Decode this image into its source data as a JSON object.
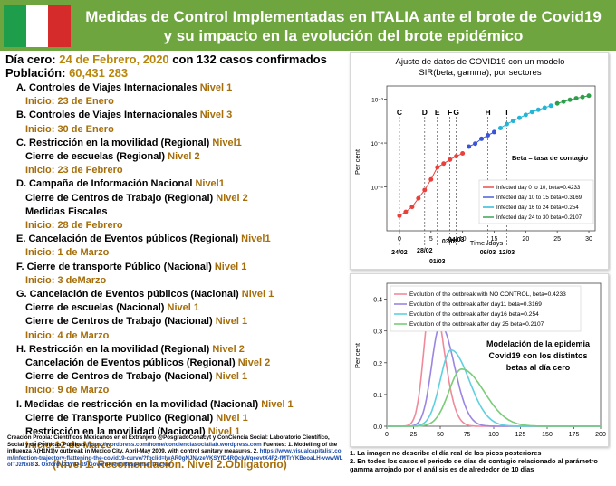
{
  "header": {
    "title_line1": "Medidas de Control Implementadas en ITALIA ante el brote de Covid19",
    "title_line2": "y su impacto en la evolución del brote epidémico",
    "flag_colors": [
      "#1e9e4a",
      "#ffffff",
      "#d62b2b"
    ],
    "background": "#6fa53e"
  },
  "intro": {
    "dia_label": "Día cero:",
    "dia_value": "24 de Febrero, 2020",
    "dia_tail": "con 132 casos confirmados",
    "poblacion_label": "Población:",
    "poblacion_value": "60,431 283"
  },
  "measures": [
    {
      "head": "A. Controles de Viajes Internacionales",
      "level": "Nivel 1",
      "start": "Inicio: 23 de Enero"
    },
    {
      "head": "B. Controles de Viajes Internacionales",
      "level": "Nivel 3",
      "start": "Inicio: 30 de Enero"
    },
    {
      "head": "C. Restricción en la movilidad (Regional)",
      "level": "Nivel1",
      "sub": [
        {
          "text": "Cierre de escuelas (Regional)",
          "level": "Nivel 2"
        }
      ],
      "start": "Inicio: 23 de Febrero"
    },
    {
      "head": "D.  Campaña de Información Nacional",
      "level": "Nivel1",
      "sub": [
        {
          "text": "Cierre de Centros de Trabajo (Regional)",
          "level": "Nivel 2"
        },
        {
          "text": "Medidas Fiscales",
          "level": ""
        }
      ],
      "start": "Inicio: 28 de Febrero"
    },
    {
      "head": "E.  Cancelación de Eventos públicos (Regional)",
      "level": "Nivel1",
      "start": "Inicio: 1 de Marzo"
    },
    {
      "head": "F. Cierre de transporte Público (Nacional)",
      "level": "Nivel 1",
      "start": "Inicio: 3  deMarzo"
    },
    {
      "head": "G. Cancelación de Eventos públicos (Nacional)",
      "level": "Nivel 1",
      "sub": [
        {
          "text": "Cierre de escuelas (Nacional)",
          "level": "Nivel 1"
        },
        {
          "text": "Cierre de Centros de Trabajo (Nacional)",
          "level": "Nivel 1"
        }
      ],
      "start": "Inicio: 4 de Marzo"
    },
    {
      "head": "H.  Restricción en la movilidad (Regional)",
      "level": "Nivel 2",
      "sub": [
        {
          "text": "Cancelación de Eventos públicos (Regional)",
          "level": "Nivel 2"
        },
        {
          "text": "Cierre de Centros de Trabajo (Nacional)",
          "level": "Nivel 1"
        }
      ],
      "start": "Inicio: 9 de Marzo"
    },
    {
      "head": "I. Medidas de restricción en la movilidad (Nacional)",
      "level": "Nivel 1",
      "sub": [
        {
          "text": "Cierre de Transporte Publico (Regional)",
          "level": "Nivel 1"
        },
        {
          "text": "Restricción en la movilidad (Nacional)",
          "level": "Nivel 1"
        }
      ],
      "start": "Inicio:12 de Marzo"
    }
  ],
  "levels_note": "(Nivel 1. Recomendación.      Nivel 2.Obligatorio)",
  "credits": {
    "text1": "Creación Propia: Científicos Mexicanos en el Extranjero @PosgradoConacyt y ConCiencia Social: Laboratorio Científico, Social y de Políticas Públicas",
    "link1": "https://wordpress.com/home/concienciasociallab.wordpress.com",
    "text2": "Fuentes: 1. Modelling of the influenza A(H1N1)v outbreak in Mexico City,  April-May 2009, with control sanitary measures, 2.",
    "link2": "https://www.visualcapitalist.com/infection-trajectory-flattening-the-covid19-curve/?fbclid=IwAR0gNJNvzeVKSYfD4RQckWqeevtX4F2-fMTrYKBeoaLH-vwwWLoITJzNxi8",
    "text3": "3.",
    "link3": "Oxford COVID-19 Government Response Tracker"
  },
  "chart1": {
    "caption_line1": "Ajuste de datos de COVID19 con un modelo",
    "caption_line2": "SIR(beta, gamma), por sectores",
    "beta_note": "Beta = tasa de contagio",
    "ylabel": "Per cent",
    "xlabel": "Time /days",
    "date_labels": [
      "24/02",
      "28/02",
      "01/03",
      "03/03",
      "04/03",
      "09/03",
      "12/03"
    ],
    "letters": [
      "C",
      "D",
      "E",
      "F",
      "G",
      "H",
      "I"
    ]
  },
  "chart2": {
    "ylabel": "Per cent",
    "annotation_line1": "Modelación de la epidemia",
    "annotation_line2": "Covid19 con los distintos",
    "annotation_line3": "betas al día cero"
  },
  "footnotes": {
    "line1": "1. La imagen no describe el día real de los picos posteriores",
    "line2": "2. En todos los casos el periodo de días de contagio relacionado  al parámetro gamma arrojado por el análisis  es de alrededor de 10 días"
  },
  "chart_data": [
    {
      "type": "scatter",
      "yscale": "log",
      "xlim": [
        -2,
        31
      ],
      "ylim": [
        1e-06,
        0.002
      ],
      "xticks": [
        0,
        5,
        10,
        15,
        20,
        25,
        30
      ],
      "yticks": [
        {
          "v": 0.001,
          "label": "10⁻³"
        },
        {
          "v": 0.0001,
          "label": "10⁻⁴"
        },
        {
          "v": 1e-05,
          "label": "10⁻⁵"
        }
      ],
      "series": [
        {
          "name": "Infected day 0 to 10, beta=0.4233",
          "color": "#e8413c",
          "x": [
            0,
            1,
            2,
            3,
            4,
            5,
            6,
            7,
            8,
            9,
            10
          ],
          "y": [
            2.2e-06,
            2.7e-06,
            3.5e-06,
            5.5e-06,
            8.5e-06,
            1.48e-05,
            2.8e-05,
            3.4e-05,
            4.2e-05,
            5e-05,
            5.8e-05
          ]
        },
        {
          "name": "Infected day 10 to 15 beta=0.3169",
          "color": "#3b54d6",
          "x": [
            11,
            12,
            13,
            14,
            15
          ],
          "y": [
            8.3e-05,
            9.7e-05,
            0.000125,
            0.00015,
            0.000178
          ]
        },
        {
          "name": "Infected day 16 to 24 beta=0.254",
          "color": "#22b5d6",
          "x": [
            16,
            17,
            18,
            19,
            20,
            21,
            22,
            23,
            24
          ],
          "y": [
            0.00022,
            0.00027,
            0.00032,
            0.000375,
            0.00044,
            0.00051,
            0.000575,
            0.00064,
            0.00071
          ]
        },
        {
          "name": "Infected day 24 to 30 beta=0.2107",
          "color": "#2e9e4a",
          "x": [
            25,
            26,
            27,
            28,
            29,
            30
          ],
          "y": [
            0.0008,
            0.00088,
            0.00097,
            0.00105,
            0.00112,
            0.0012
          ]
        }
      ],
      "markers": [
        {
          "letter": "C",
          "x": 0
        },
        {
          "letter": "D",
          "x": 4
        },
        {
          "letter": "E",
          "x": 6
        },
        {
          "letter": "F",
          "x": 8
        },
        {
          "letter": "G",
          "x": 9
        },
        {
          "letter": "H",
          "x": 14
        },
        {
          "letter": "I",
          "x": 17
        }
      ],
      "dates": [
        {
          "label": "24/02",
          "x": 0
        },
        {
          "label": "28/02",
          "x": 4
        },
        {
          "label": "01/03",
          "x": 6
        },
        {
          "label": "03/03",
          "x": 8
        },
        {
          "label": "04/03",
          "x": 9
        },
        {
          "label": "09/03",
          "x": 14
        },
        {
          "label": "12/03",
          "x": 17
        }
      ]
    },
    {
      "type": "line",
      "xlim": [
        0,
        200
      ],
      "ylim": [
        0,
        0.45
      ],
      "xticks": [
        0,
        25,
        50,
        75,
        100,
        125,
        150,
        175,
        200
      ],
      "yticks": [
        0.0,
        0.1,
        0.2,
        0.3,
        0.4
      ],
      "series": [
        {
          "name": "Evolution of the outbreak with NO CONTROL, beta=0.4233",
          "color": "#f08a9a",
          "peak_x": 42,
          "peak_y": 0.42,
          "rise": 7,
          "fall": 11
        },
        {
          "name": "Evolution of the outbreak after day11 beta=0.3169",
          "color": "#9a86e0",
          "peak_x": 50,
          "peak_y": 0.32,
          "rise": 8,
          "fall": 13
        },
        {
          "name": "Evolution of the outbreak after day16 beta=0.254",
          "color": "#5fd0e0",
          "peak_x": 60,
          "peak_y": 0.24,
          "rise": 10,
          "fall": 17
        },
        {
          "name": "Evolution of the outbreak after day 25 beta=0.2107",
          "color": "#7acc7a",
          "peak_x": 70,
          "peak_y": 0.18,
          "rise": 12,
          "fall": 21
        }
      ]
    }
  ]
}
